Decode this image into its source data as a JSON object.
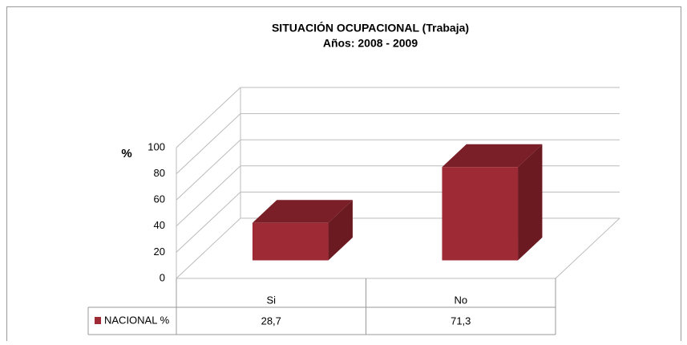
{
  "chart_data": {
    "type": "bar3d",
    "title": "SITUACIÓN  OCUPACIONAL  (Trabaja)",
    "subtitle": "Años: 2008  - 2009",
    "y_label": "%",
    "categories": [
      "Si",
      "No"
    ],
    "series": [
      {
        "name": "NACIONAL %",
        "color": "#9e2a35",
        "values": [
          28.7,
          71.3
        ],
        "value_labels": [
          "28,7",
          "71,3"
        ]
      }
    ],
    "ylim": [
      0,
      100
    ],
    "yticks": [
      0,
      20,
      40,
      60,
      80,
      100
    ],
    "grid": true
  }
}
